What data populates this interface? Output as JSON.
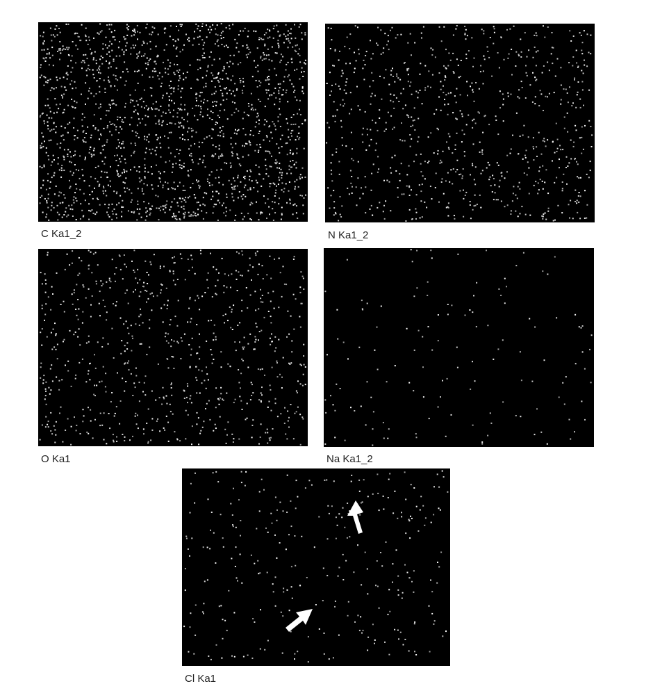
{
  "panels": [
    {
      "label": "C Ka1_2"
    },
    {
      "label": "N Ka1_2"
    },
    {
      "label": "O Ka1"
    },
    {
      "label": "Na Ka1_2"
    },
    {
      "label": "Cl Ka1"
    }
  ]
}
